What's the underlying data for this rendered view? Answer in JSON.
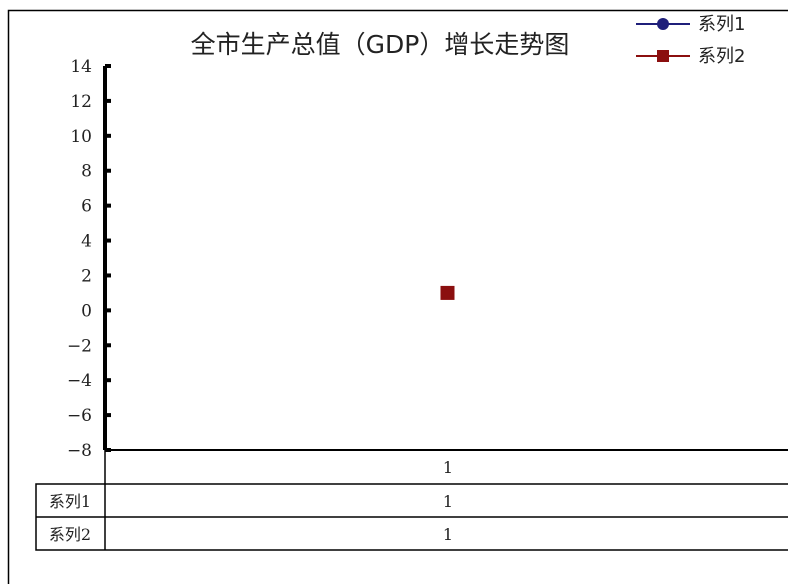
{
  "chart_data": {
    "type": "line",
    "title": "全市生产总值（GDP）增长走势图",
    "categories": [
      "1"
    ],
    "series": [
      {
        "name": "系列1",
        "values": [
          1
        ],
        "color": "#1f1f7a",
        "marker": "circle"
      },
      {
        "name": "系列2",
        "values": [
          1
        ],
        "color": "#8b0f0f",
        "marker": "square"
      }
    ],
    "ylim": [
      -8,
      14
    ],
    "ytick_step": 2,
    "ytick_labels": [
      "14",
      "12",
      "10",
      "8",
      "6",
      "4",
      "2",
      "0",
      "−2",
      "−4",
      "−6",
      "−8"
    ],
    "xlabel": "",
    "ylabel": "",
    "grid": false,
    "legend_position": "top-right",
    "data_table": {
      "header": [
        "1"
      ],
      "rows": [
        {
          "label": "系列1",
          "cells": [
            "1"
          ]
        },
        {
          "label": "系列2",
          "cells": [
            "1"
          ]
        }
      ]
    }
  }
}
